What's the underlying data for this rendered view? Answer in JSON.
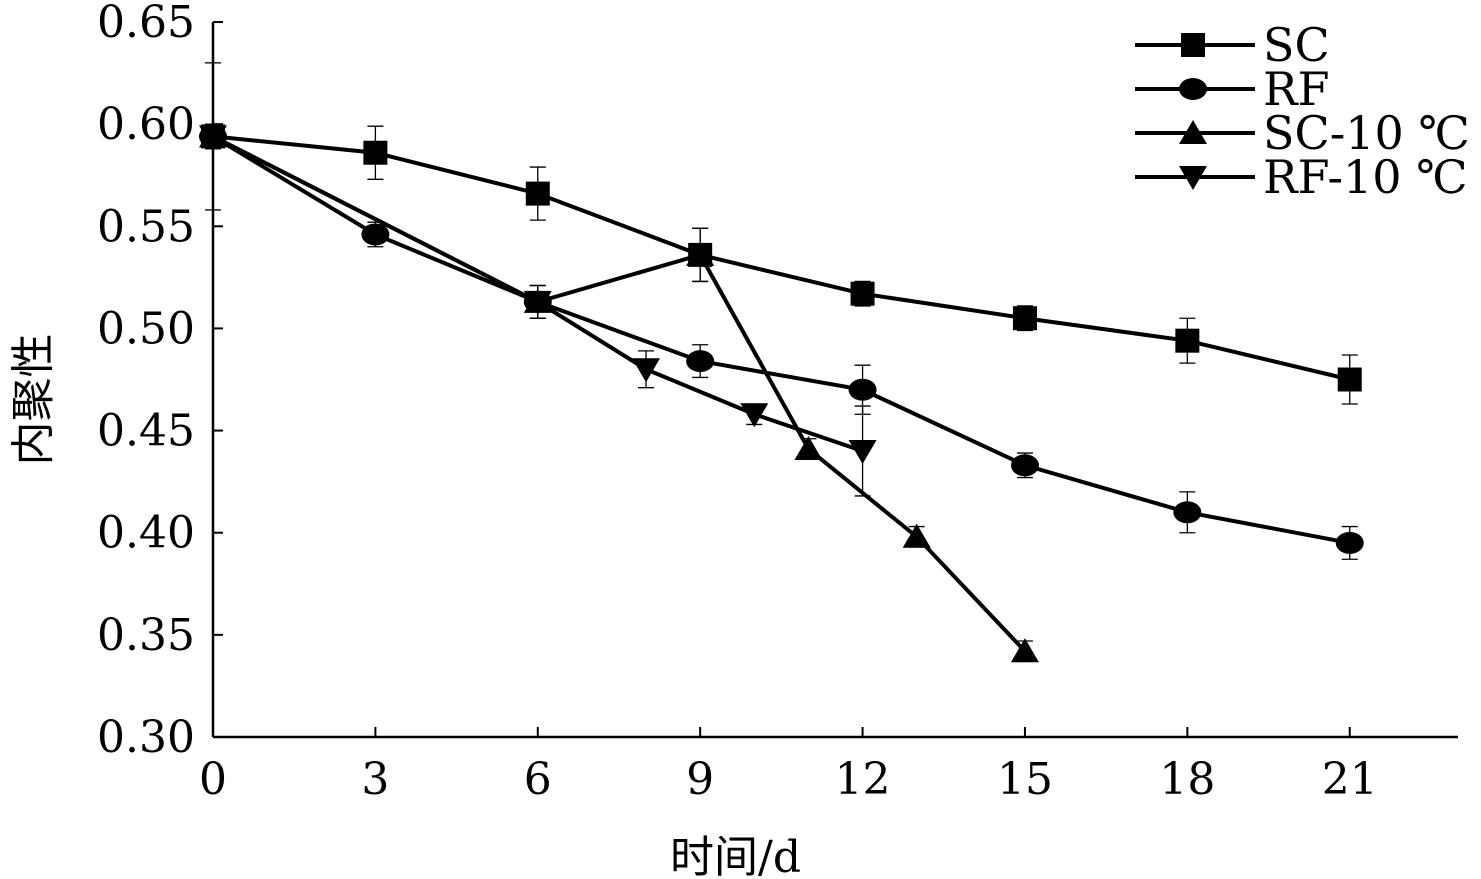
{
  "chart_data": {
    "type": "line",
    "xlabel": "时间/d",
    "ylabel": "内聚性",
    "xlim": [
      0,
      23
    ],
    "ylim": [
      0.3,
      0.65
    ],
    "x_ticks": [
      0,
      3,
      6,
      9,
      12,
      15,
      18,
      21
    ],
    "x_tick_labels": [
      "0",
      "3",
      "6",
      "9",
      "12",
      "15",
      "18",
      "21"
    ],
    "y_ticks": [
      0.3,
      0.35,
      0.4,
      0.45,
      0.5,
      0.55,
      0.6,
      0.65
    ],
    "y_tick_labels": [
      "0.30",
      "0.35",
      "0.40",
      "0.45",
      "0.50",
      "0.55",
      "0.60",
      "0.65"
    ],
    "grid": false,
    "legend_position": "top-right",
    "series": [
      {
        "name": "SC",
        "marker": "square",
        "x": [
          0,
          3,
          6,
          9,
          12,
          15,
          18,
          21
        ],
        "y": [
          0.594,
          0.586,
          0.566,
          0.536,
          0.517,
          0.505,
          0.494,
          0.475
        ],
        "err": [
          0.036,
          0.013,
          0.013,
          0.013,
          0.006,
          0.006,
          0.011,
          0.012
        ]
      },
      {
        "name": "RF",
        "marker": "circle",
        "x": [
          0,
          3,
          6,
          9,
          12,
          15,
          18,
          21
        ],
        "y": [
          0.594,
          0.546,
          0.513,
          0.484,
          0.47,
          0.433,
          0.41,
          0.395
        ],
        "err": [
          0.006,
          0.006,
          0.008,
          0.008,
          0.012,
          0.006,
          0.01,
          0.008
        ]
      },
      {
        "name": "SC-10 ℃",
        "marker": "triangle-up",
        "x": [
          0,
          6,
          9,
          11,
          13,
          15
        ],
        "y": [
          0.594,
          0.513,
          0.536,
          0.441,
          0.398,
          0.342
        ],
        "err": [
          0.006,
          0.008,
          0.013,
          0.005,
          0.005,
          0.005
        ]
      },
      {
        "name": "RF-10 ℃",
        "marker": "triangle-down",
        "x": [
          0,
          6,
          8,
          10,
          12
        ],
        "y": [
          0.594,
          0.513,
          0.48,
          0.458,
          0.44
        ],
        "err": [
          0.006,
          0.008,
          0.009,
          0.005,
          0.022
        ]
      }
    ]
  }
}
